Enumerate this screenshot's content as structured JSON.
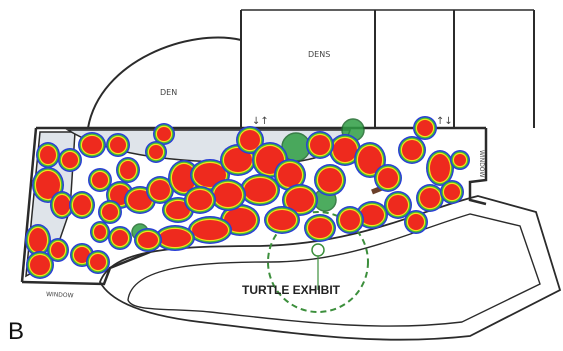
{
  "figure": {
    "panel_label": "B",
    "labels": {
      "den_left": "DEN",
      "dens_right": "DENS",
      "window_bottom": "WINDOW",
      "window_right": "WINDOW",
      "turtle_exhibit": "TURTLE EXHIBIT",
      "arrows_left": "↓↑",
      "arrows_right": "↑↓"
    },
    "heatmap": {
      "colors": {
        "outer": "#2a3fd6",
        "mid": "#3fb83a",
        "warm": "#f2e21a",
        "hot": "#ee2a1e"
      }
    },
    "floorplan_colors": {
      "line": "#2b2b2b",
      "pool": "#dfe4ea",
      "tree": "#2f9e44",
      "grass": "#3c8f3c"
    }
  }
}
